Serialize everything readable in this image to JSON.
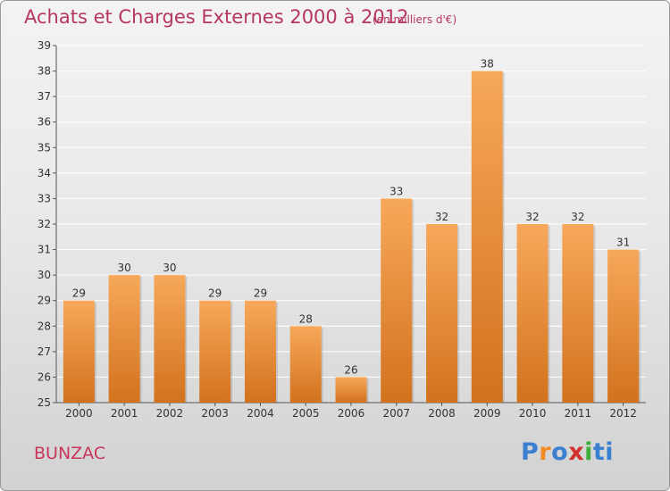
{
  "title": "Achats et Charges Externes 2000 à 2012",
  "subtitle": "(en milliers d'€)",
  "commune": "BUNZAC",
  "logo": {
    "text": "Proxiti",
    "colors": [
      "#3a7fd0",
      "#f08a24",
      "#3a7fd0",
      "#d2322d",
      "#3fae3a",
      "#3a7fd0",
      "#3a7fd0"
    ]
  },
  "colors": {
    "title": "#b5375f",
    "bar_top": "#f7a85a",
    "bar_bottom": "#d2721d",
    "grid": "#ffffff",
    "axis": "#555555"
  },
  "chart_data": {
    "type": "bar",
    "title": "Achats et Charges Externes 2000 à 2012",
    "subtitle": "(en milliers d'€)",
    "categories": [
      "2000",
      "2001",
      "2002",
      "2003",
      "2004",
      "2005",
      "2006",
      "2007",
      "2008",
      "2009",
      "2010",
      "2011",
      "2012"
    ],
    "values": [
      29,
      30,
      30,
      29,
      29,
      28,
      26,
      33,
      32,
      38,
      32,
      32,
      31
    ],
    "ylim": [
      25,
      39
    ],
    "yticks": [
      25,
      26,
      27,
      28,
      29,
      30,
      31,
      32,
      33,
      34,
      35,
      36,
      37,
      38,
      39
    ],
    "grid": true,
    "data_labels": true
  }
}
